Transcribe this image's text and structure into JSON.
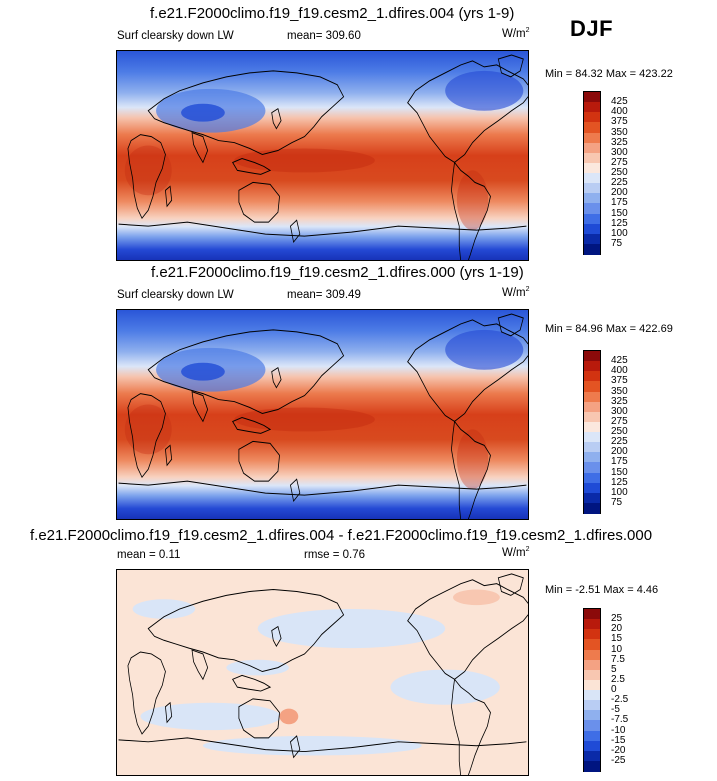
{
  "season": "DJF",
  "units": "W/m",
  "units_sup": "2",
  "panels": [
    {
      "title": "f.e21.F2000climo.f19_f19.cesm2_1.dfires.004 (yrs 1-9)",
      "variable": "Surf clearsky down LW",
      "mean_text": "mean= 309.60",
      "minmax_text": "Min =  84.32 Max = 423.22"
    },
    {
      "title": "f.e21.F2000climo.f19_f19.cesm2_1.dfires.000 (yrs 1-19)",
      "variable": "Surf clearsky down LW",
      "mean_text": "mean= 309.49",
      "minmax_text": "Min =  84.96 Max = 422.69"
    },
    {
      "title": "f.e21.F2000climo.f19_f19.cesm2_1.dfires.004 - f.e21.F2000climo.f19_f19.cesm2_1.dfires.000",
      "mean_text": "mean =   0.11",
      "rmse_text": "rmse =   0.76",
      "minmax_text": "Min =  -2.51 Max =   4.46"
    }
  ],
  "abs_colorbar": {
    "labels": [
      "425",
      "400",
      "375",
      "350",
      "325",
      "300",
      "275",
      "250",
      "225",
      "200",
      "175",
      "150",
      "125",
      "100",
      "75"
    ],
    "colors": [
      "#8b0a0a",
      "#b81a0c",
      "#d23311",
      "#e35423",
      "#ee7b4d",
      "#f4a283",
      "#f8c7b1",
      "#fbe8de",
      "#dbe6f8",
      "#b9cdf3",
      "#8fb0ee",
      "#6a90eb",
      "#3f6ee6",
      "#1f4bd6",
      "#0a2aa8",
      "#001580"
    ]
  },
  "diff_colorbar": {
    "labels": [
      "25",
      "20",
      "15",
      "10",
      "7.5",
      "5",
      "2.5",
      "0",
      "-2.5",
      "-5",
      "-7.5",
      "-10",
      "-15",
      "-20",
      "-25"
    ],
    "colors": [
      "#8b0a0a",
      "#b81a0c",
      "#d23311",
      "#e35423",
      "#ee7b4d",
      "#f4a283",
      "#f8c7b1",
      "#fbe4d6",
      "#d9e5f7",
      "#b9cdf3",
      "#8fb0ee",
      "#6a90eb",
      "#3f6ee6",
      "#1f4bd6",
      "#0a2aa8",
      "#001580"
    ]
  }
}
